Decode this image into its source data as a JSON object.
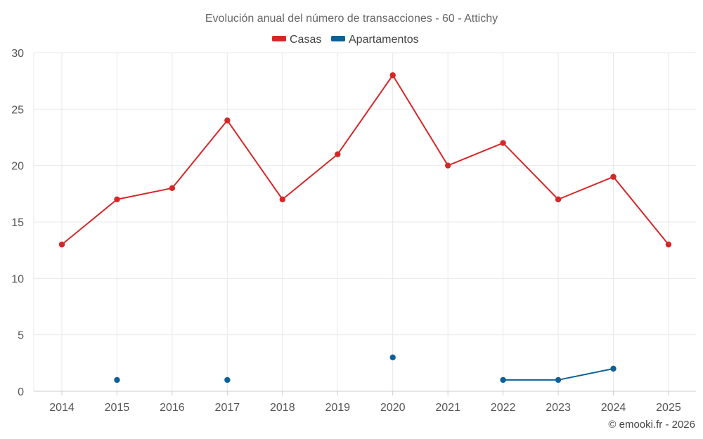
{
  "chart_data": {
    "type": "line",
    "title": "Evolución anual del número de transacciones - 60 - Attichy",
    "categories": [
      "2014",
      "2015",
      "2016",
      "2017",
      "2018",
      "2019",
      "2020",
      "2021",
      "2022",
      "2023",
      "2024",
      "2025"
    ],
    "ylim": [
      0,
      30
    ],
    "yticks": [
      0,
      5,
      10,
      15,
      20,
      25,
      30
    ],
    "grid": true,
    "legend_position": "top-center",
    "series": [
      {
        "name": "Casas",
        "color": "#d62728",
        "values": [
          13,
          17,
          18,
          24,
          17,
          21,
          28,
          20,
          22,
          17,
          19,
          13
        ]
      },
      {
        "name": "Apartamentos",
        "color": "#0b6199",
        "values": [
          null,
          1,
          null,
          1,
          null,
          null,
          3,
          null,
          1,
          1,
          2,
          null
        ]
      }
    ]
  },
  "footer": {
    "credit": "© emooki.fr - 2026"
  }
}
